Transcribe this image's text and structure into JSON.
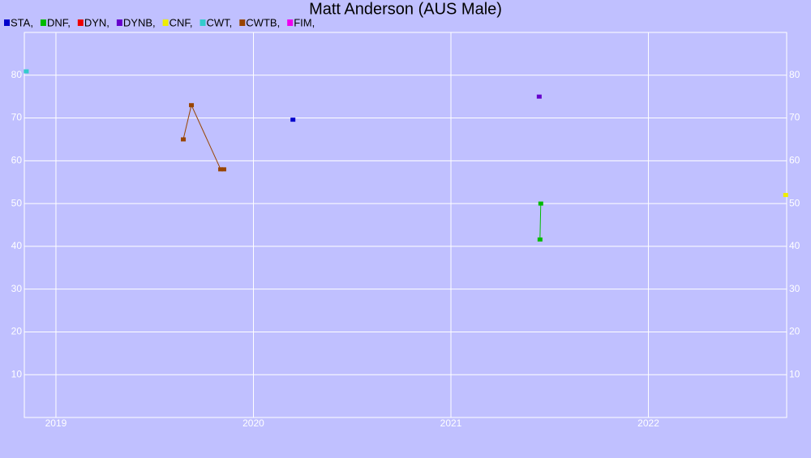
{
  "chart_data": {
    "type": "line",
    "title": "Matt Anderson (AUS Male)",
    "xlim": [
      2018.84,
      2022.7
    ],
    "xticks": [
      2019,
      2020,
      2021,
      2022
    ],
    "ylim": [
      0,
      90
    ],
    "yticks": [
      10,
      20,
      30,
      40,
      50,
      60,
      70,
      80
    ],
    "grid": true,
    "series": [
      {
        "name": "STA,",
        "color": "#0000cc",
        "x": [
          2020.2
        ],
        "values": [
          69.6
        ]
      },
      {
        "name": "DNF,",
        "color": "#00bb00",
        "x": [
          2021.451,
          2021.455
        ],
        "values": [
          41.6,
          50
        ]
      },
      {
        "name": "DYN,",
        "color": "#ee0000",
        "x": [],
        "values": []
      },
      {
        "name": "DYNB,",
        "color": "#6600cc",
        "x": [
          2021.447
        ],
        "values": [
          75
        ]
      },
      {
        "name": "CNF,",
        "color": "#eeee00",
        "x": [
          2022.695
        ],
        "values": [
          52
        ]
      },
      {
        "name": "CWT,",
        "color": "#33cccc",
        "x": [
          2018.85
        ],
        "values": [
          80.9
        ]
      },
      {
        "name": "CWTB,",
        "color": "#994400",
        "x": [
          2019.645,
          2019.686,
          2019.834,
          2019.85
        ],
        "values": [
          65,
          73,
          58,
          58
        ]
      },
      {
        "name": "FIM,",
        "color": "#ee00ee",
        "x": [],
        "values": []
      }
    ]
  }
}
